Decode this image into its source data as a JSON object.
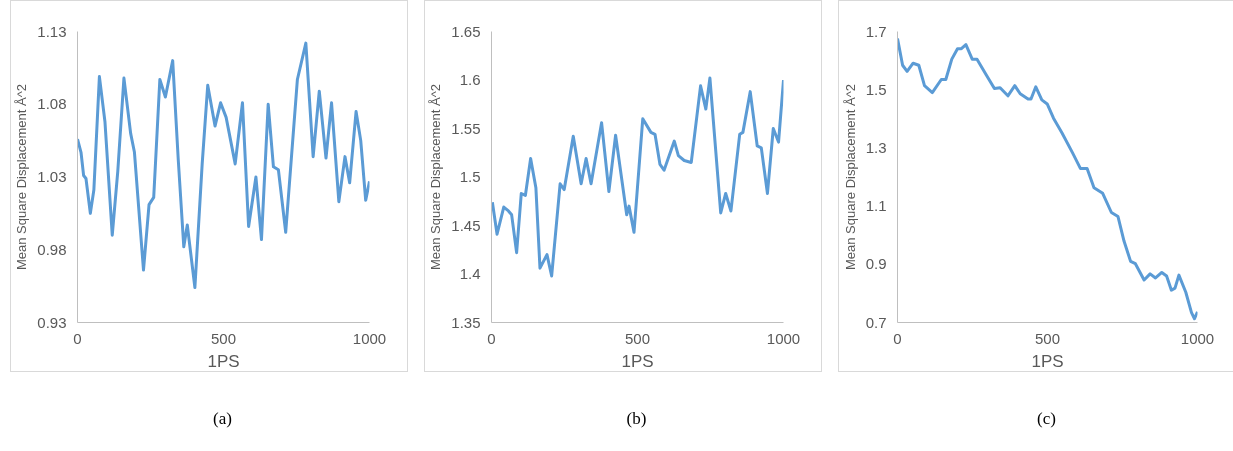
{
  "chart_data": [
    {
      "type": "line",
      "xlabel": "1PS",
      "ylabel": "Mean Square Displacement Å^2",
      "annotations": [
        "(a)"
      ],
      "xlim": [
        0,
        1000
      ],
      "ylim": [
        0.93,
        1.13
      ],
      "xticks": [
        0,
        500,
        1000
      ],
      "yticks": [
        0.93,
        0.98,
        1.03,
        1.08,
        1.13
      ],
      "x": [
        0,
        12,
        21,
        29,
        44,
        56,
        75,
        94,
        119,
        138,
        159,
        182,
        195,
        226,
        245,
        261,
        282,
        301,
        326,
        345,
        364,
        376,
        402,
        427,
        446,
        471,
        490,
        509,
        540,
        565,
        586,
        611,
        630,
        653,
        671,
        688,
        713,
        753,
        782,
        807,
        828,
        851,
        870,
        895,
        916,
        932,
        954,
        970,
        987,
        1000
      ],
      "series": [
        {
          "color": "#5b9bd5",
          "values": [
            1.056,
            1.047,
            1.031,
            1.029,
            1.005,
            1.021,
            1.099,
            1.068,
            0.99,
            1.034,
            1.098,
            1.06,
            1.047,
            0.966,
            1.011,
            1.016,
            1.097,
            1.085,
            1.11,
            1.042,
            0.982,
            0.997,
            0.954,
            1.039,
            1.093,
            1.065,
            1.081,
            1.071,
            1.039,
            1.081,
            0.996,
            1.03,
            0.987,
            1.08,
            1.037,
            1.035,
            0.992,
            1.097,
            1.122,
            1.044,
            1.089,
            1.043,
            1.081,
            1.013,
            1.044,
            1.026,
            1.075,
            1.055,
            1.014,
            1.027
          ]
        }
      ]
    },
    {
      "type": "line",
      "xlabel": "1PS",
      "ylabel": "Mean Square Displacement Å^2",
      "annotations": [
        "(b)"
      ],
      "xlim": [
        0,
        1000
      ],
      "ylim": [
        1.35,
        1.65
      ],
      "xticks": [
        0,
        500,
        1000
      ],
      "yticks": [
        1.35,
        1.4,
        1.45,
        1.5,
        1.55,
        1.6,
        1.65
      ],
      "x": [
        3,
        19,
        42,
        58,
        69,
        86,
        102,
        116,
        134,
        152,
        166,
        190,
        206,
        235,
        249,
        280,
        307,
        324,
        341,
        377,
        402,
        425,
        463,
        471,
        488,
        518,
        546,
        560,
        577,
        591,
        626,
        640,
        660,
        684,
        716,
        734,
        748,
        785,
        802,
        820,
        850,
        861,
        886,
        910,
        924,
        945,
        965,
        983,
        1000
      ],
      "series": [
        {
          "color": "#5b9bd5",
          "values": [
            1.474,
            1.441,
            1.469,
            1.465,
            1.461,
            1.422,
            1.483,
            1.481,
            1.519,
            1.489,
            1.406,
            1.42,
            1.398,
            1.493,
            1.487,
            1.542,
            1.493,
            1.519,
            1.493,
            1.556,
            1.485,
            1.543,
            1.461,
            1.47,
            1.443,
            1.56,
            1.546,
            1.544,
            1.513,
            1.507,
            1.537,
            1.522,
            1.517,
            1.515,
            1.594,
            1.57,
            1.602,
            1.463,
            1.483,
            1.465,
            1.544,
            1.546,
            1.588,
            1.532,
            1.53,
            1.483,
            1.55,
            1.536,
            1.6
          ]
        }
      ]
    },
    {
      "type": "line",
      "xlabel": "1PS",
      "ylabel": "Mean Square Displacement Å^2",
      "annotations": [
        "(c)"
      ],
      "xlim": [
        0,
        1000
      ],
      "ylim": [
        0.7,
        1.7
      ],
      "xticks": [
        0,
        500,
        1000
      ],
      "yticks": [
        0.7,
        0.9,
        1.1,
        1.3,
        1.5,
        1.7
      ],
      "x": [
        0,
        17,
        32,
        52,
        71,
        90,
        116,
        146,
        161,
        181,
        200,
        213,
        228,
        249,
        265,
        297,
        323,
        342,
        368,
        391,
        409,
        435,
        445,
        461,
        481,
        499,
        520,
        548,
        584,
        610,
        632,
        655,
        684,
        713,
        735,
        755,
        777,
        793,
        822,
        842,
        860,
        881,
        897,
        913,
        925,
        938,
        961,
        980,
        990,
        1000
      ],
      "series": [
        {
          "color": "#5b9bd5",
          "values": [
            1.676,
            1.584,
            1.563,
            1.591,
            1.584,
            1.514,
            1.49,
            1.535,
            1.535,
            1.605,
            1.641,
            1.641,
            1.655,
            1.605,
            1.605,
            1.549,
            1.504,
            1.507,
            1.479,
            1.514,
            1.486,
            1.468,
            1.468,
            1.51,
            1.465,
            1.451,
            1.402,
            1.352,
            1.282,
            1.229,
            1.229,
            1.163,
            1.144,
            1.078,
            1.064,
            0.98,
            0.91,
            0.902,
            0.846,
            0.867,
            0.853,
            0.872,
            0.86,
            0.811,
            0.818,
            0.863,
            0.804,
            0.734,
            0.713,
            0.737
          ]
        }
      ]
    }
  ]
}
